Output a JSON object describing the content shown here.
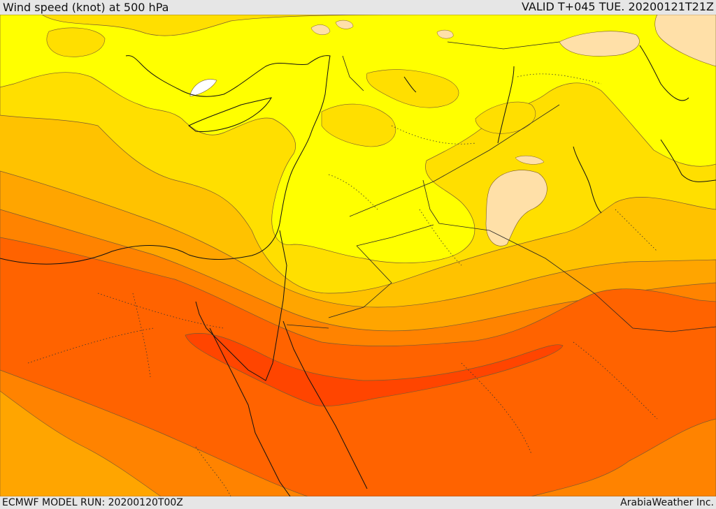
{
  "header": {
    "title": "Wind speed (knot) at 500 hPa",
    "valid": "VALID T+045 TUE. 20200121T21Z"
  },
  "footer": {
    "model_run": "ECMWF MODEL RUN: 20200120T00Z",
    "credit": "ArabiaWeather Inc."
  },
  "colors": {
    "band_white": "#ffffff",
    "band_peach": "#ffe0a8",
    "band_yellow": "#ffff00",
    "band_gold": "#ffdf00",
    "band_amber": "#ffc200",
    "band_orange_light": "#ffa500",
    "band_orange": "#ff8300",
    "band_orange_dark": "#ff6300",
    "band_red_orange": "#ff4500"
  }
}
